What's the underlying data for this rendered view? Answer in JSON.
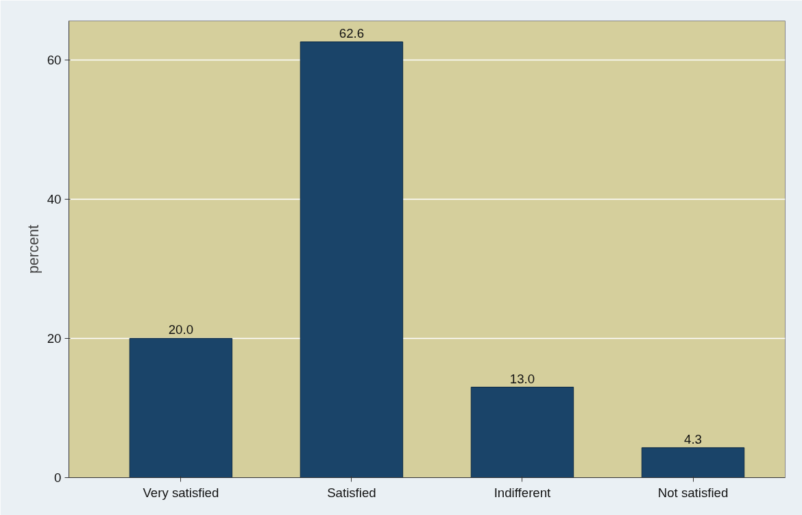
{
  "chart_data": {
    "type": "bar",
    "ylabel": "percent",
    "categories": [
      "Very satisfied",
      "Satisfied",
      "Indifferent",
      "Not satisfied"
    ],
    "values": [
      20.0,
      62.6,
      13.0,
      4.3
    ],
    "color": "#1a4469",
    "ylim": [
      0,
      65.6
    ],
    "yticks": [
      0,
      20,
      40,
      60
    ],
    "grid": "y",
    "value_labels": [
      "20.0",
      "62.6",
      "13.0",
      "4.3"
    ]
  }
}
